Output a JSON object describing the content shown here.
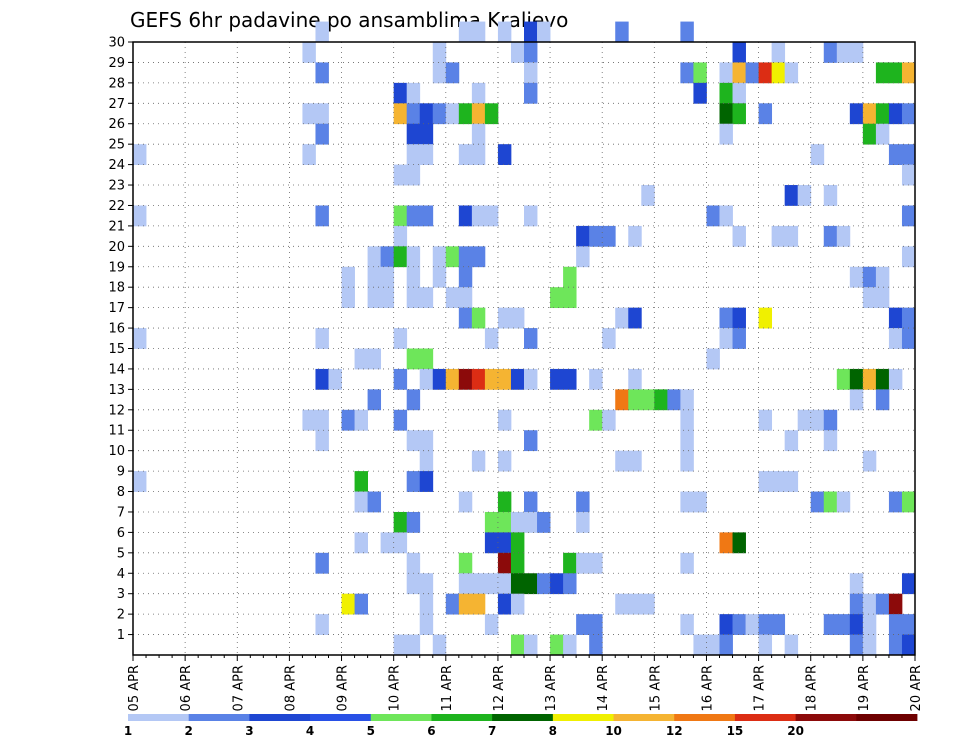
{
  "chart_data": {
    "type": "heatmap",
    "title": "GEFS 6hr padavine po ansamblima Kraljevo",
    "xlabel": "",
    "ylabel": "",
    "x_tick_labels": [
      "05 APR",
      "06 APR",
      "07 APR",
      "08 APR",
      "09 APR",
      "10 APR",
      "11 APR",
      "12 APR",
      "13 APR",
      "14 APR",
      "15 APR",
      "16 APR",
      "17 APR",
      "18 APR",
      "19 APR",
      "20 APR"
    ],
    "y_tick_labels": [
      "1",
      "2",
      "3",
      "4",
      "5",
      "6",
      "7",
      "8",
      "9",
      "10",
      "11",
      "12",
      "13",
      "14",
      "15",
      "16",
      "17",
      "18",
      "19",
      "20",
      "21",
      "22",
      "23",
      "24",
      "25",
      "26",
      "27",
      "28",
      "29",
      "30"
    ],
    "ylim": [
      0,
      30
    ],
    "x_steps_per_day": 4,
    "x_steps": 60,
    "grid": true,
    "colorbar": {
      "position": "bottom",
      "labels": [
        "1",
        "2",
        "3",
        "4",
        "5",
        "6",
        "7",
        "8",
        "10",
        "12",
        "15",
        "20"
      ],
      "colors": [
        "#b4c8f5",
        "#5a82e6",
        "#1e46d2",
        "#2850e6",
        "#6ee65a",
        "#1eb41e",
        "#006400",
        "#f0f000",
        "#f5b432",
        "#f07814",
        "#dc2d14",
        "#8c0a0a",
        "#6e0000"
      ]
    },
    "cells": [
      [
        14,
        30,
        0
      ],
      [
        25,
        30,
        0
      ],
      [
        26,
        30,
        0
      ],
      [
        28,
        30,
        0
      ],
      [
        30,
        30,
        2
      ],
      [
        31,
        30,
        0
      ],
      [
        37,
        30,
        1
      ],
      [
        42,
        30,
        1
      ],
      [
        13,
        29,
        0
      ],
      [
        23,
        29,
        0
      ],
      [
        29,
        29,
        0
      ],
      [
        30,
        29,
        1
      ],
      [
        46,
        29,
        2
      ],
      [
        49,
        29,
        0
      ],
      [
        53,
        29,
        1
      ],
      [
        54,
        29,
        0
      ],
      [
        55,
        29,
        0
      ],
      [
        14,
        28,
        1
      ],
      [
        23,
        28,
        0
      ],
      [
        24,
        28,
        1
      ],
      [
        30,
        28,
        0
      ],
      [
        42,
        28,
        1
      ],
      [
        43,
        28,
        4
      ],
      [
        45,
        28,
        0
      ],
      [
        46,
        28,
        8
      ],
      [
        47,
        28,
        1
      ],
      [
        48,
        28,
        10
      ],
      [
        49,
        28,
        7
      ],
      [
        50,
        28,
        0
      ],
      [
        57,
        28,
        5
      ],
      [
        58,
        28,
        5
      ],
      [
        59,
        28,
        8
      ],
      [
        20,
        27,
        2
      ],
      [
        21,
        27,
        0
      ],
      [
        26,
        27,
        0
      ],
      [
        30,
        27,
        1
      ],
      [
        43,
        27,
        2
      ],
      [
        45,
        27,
        5
      ],
      [
        46,
        27,
        0
      ],
      [
        13,
        26,
        0
      ],
      [
        14,
        26,
        0
      ],
      [
        20,
        26,
        8
      ],
      [
        21,
        26,
        1
      ],
      [
        22,
        26,
        2
      ],
      [
        23,
        26,
        1
      ],
      [
        24,
        26,
        0
      ],
      [
        25,
        26,
        5
      ],
      [
        26,
        26,
        8
      ],
      [
        27,
        26,
        5
      ],
      [
        45,
        26,
        6
      ],
      [
        46,
        26,
        5
      ],
      [
        48,
        26,
        1
      ],
      [
        55,
        26,
        2
      ],
      [
        56,
        26,
        8
      ],
      [
        57,
        26,
        5
      ],
      [
        58,
        26,
        2
      ],
      [
        59,
        26,
        1
      ],
      [
        14,
        25,
        1
      ],
      [
        21,
        25,
        2
      ],
      [
        22,
        25,
        2
      ],
      [
        26,
        25,
        0
      ],
      [
        45,
        25,
        0
      ],
      [
        56,
        25,
        5
      ],
      [
        57,
        25,
        0
      ],
      [
        0,
        24,
        0
      ],
      [
        13,
        24,
        0
      ],
      [
        21,
        24,
        0
      ],
      [
        22,
        24,
        0
      ],
      [
        25,
        24,
        0
      ],
      [
        26,
        24,
        0
      ],
      [
        28,
        24,
        2
      ],
      [
        52,
        24,
        0
      ],
      [
        58,
        24,
        1
      ],
      [
        59,
        24,
        1
      ],
      [
        20,
        23,
        0
      ],
      [
        21,
        23,
        0
      ],
      [
        59,
        23,
        0
      ],
      [
        39,
        22,
        0
      ],
      [
        50,
        22,
        2
      ],
      [
        51,
        22,
        0
      ],
      [
        53,
        22,
        0
      ],
      [
        0,
        21,
        0
      ],
      [
        14,
        21,
        1
      ],
      [
        20,
        21,
        4
      ],
      [
        21,
        21,
        1
      ],
      [
        22,
        21,
        1
      ],
      [
        25,
        21,
        2
      ],
      [
        26,
        21,
        0
      ],
      [
        27,
        21,
        0
      ],
      [
        30,
        21,
        0
      ],
      [
        44,
        21,
        1
      ],
      [
        45,
        21,
        0
      ],
      [
        59,
        21,
        1
      ],
      [
        20,
        20,
        0
      ],
      [
        34,
        20,
        2
      ],
      [
        35,
        20,
        1
      ],
      [
        36,
        20,
        1
      ],
      [
        38,
        20,
        0
      ],
      [
        46,
        20,
        0
      ],
      [
        49,
        20,
        0
      ],
      [
        50,
        20,
        0
      ],
      [
        53,
        20,
        1
      ],
      [
        54,
        20,
        0
      ],
      [
        18,
        19,
        0
      ],
      [
        19,
        19,
        1
      ],
      [
        20,
        19,
        5
      ],
      [
        21,
        19,
        0
      ],
      [
        23,
        19,
        0
      ],
      [
        24,
        19,
        4
      ],
      [
        25,
        19,
        1
      ],
      [
        26,
        19,
        1
      ],
      [
        34,
        19,
        0
      ],
      [
        59,
        19,
        0
      ],
      [
        16,
        18,
        0
      ],
      [
        18,
        18,
        0
      ],
      [
        19,
        18,
        0
      ],
      [
        21,
        18,
        0
      ],
      [
        23,
        18,
        0
      ],
      [
        25,
        18,
        1
      ],
      [
        33,
        18,
        4
      ],
      [
        55,
        18,
        0
      ],
      [
        56,
        18,
        1
      ],
      [
        57,
        18,
        0
      ],
      [
        16,
        17,
        0
      ],
      [
        18,
        17,
        0
      ],
      [
        19,
        17,
        0
      ],
      [
        21,
        17,
        0
      ],
      [
        22,
        17,
        0
      ],
      [
        24,
        17,
        0
      ],
      [
        25,
        17,
        0
      ],
      [
        32,
        17,
        4
      ],
      [
        33,
        17,
        4
      ],
      [
        56,
        17,
        0
      ],
      [
        57,
        17,
        0
      ],
      [
        25,
        16,
        1
      ],
      [
        26,
        16,
        4
      ],
      [
        28,
        16,
        0
      ],
      [
        29,
        16,
        0
      ],
      [
        37,
        16,
        0
      ],
      [
        38,
        16,
        2
      ],
      [
        45,
        16,
        1
      ],
      [
        46,
        16,
        2
      ],
      [
        48,
        16,
        7
      ],
      [
        58,
        16,
        2
      ],
      [
        59,
        16,
        1
      ],
      [
        0,
        15,
        0
      ],
      [
        14,
        15,
        0
      ],
      [
        20,
        15,
        0
      ],
      [
        27,
        15,
        0
      ],
      [
        30,
        15,
        1
      ],
      [
        36,
        15,
        0
      ],
      [
        45,
        15,
        0
      ],
      [
        46,
        15,
        1
      ],
      [
        58,
        15,
        0
      ],
      [
        59,
        15,
        1
      ],
      [
        17,
        14,
        0
      ],
      [
        18,
        14,
        0
      ],
      [
        21,
        14,
        4
      ],
      [
        22,
        14,
        4
      ],
      [
        44,
        14,
        0
      ],
      [
        14,
        13,
        2
      ],
      [
        15,
        13,
        0
      ],
      [
        20,
        13,
        1
      ],
      [
        22,
        13,
        0
      ],
      [
        23,
        13,
        2
      ],
      [
        24,
        13,
        8
      ],
      [
        25,
        13,
        11
      ],
      [
        26,
        13,
        10
      ],
      [
        27,
        13,
        8
      ],
      [
        28,
        13,
        8
      ],
      [
        29,
        13,
        2
      ],
      [
        30,
        13,
        0
      ],
      [
        32,
        13,
        2
      ],
      [
        33,
        13,
        2
      ],
      [
        35,
        13,
        0
      ],
      [
        38,
        13,
        0
      ],
      [
        54,
        13,
        4
      ],
      [
        55,
        13,
        6
      ],
      [
        56,
        13,
        8
      ],
      [
        57,
        13,
        6
      ],
      [
        58,
        13,
        0
      ],
      [
        18,
        12,
        1
      ],
      [
        21,
        12,
        1
      ],
      [
        37,
        12,
        9
      ],
      [
        38,
        12,
        4
      ],
      [
        39,
        12,
        4
      ],
      [
        40,
        12,
        5
      ],
      [
        41,
        12,
        1
      ],
      [
        42,
        12,
        0
      ],
      [
        55,
        12,
        0
      ],
      [
        57,
        12,
        1
      ],
      [
        13,
        11,
        0
      ],
      [
        14,
        11,
        0
      ],
      [
        16,
        11,
        1
      ],
      [
        17,
        11,
        0
      ],
      [
        20,
        11,
        1
      ],
      [
        28,
        11,
        0
      ],
      [
        35,
        11,
        4
      ],
      [
        36,
        11,
        0
      ],
      [
        42,
        11,
        0
      ],
      [
        48,
        11,
        0
      ],
      [
        51,
        11,
        0
      ],
      [
        52,
        11,
        0
      ],
      [
        53,
        11,
        1
      ],
      [
        14,
        10,
        0
      ],
      [
        21,
        10,
        0
      ],
      [
        22,
        10,
        0
      ],
      [
        30,
        10,
        1
      ],
      [
        42,
        10,
        0
      ],
      [
        50,
        10,
        0
      ],
      [
        53,
        10,
        0
      ],
      [
        22,
        9,
        0
      ],
      [
        26,
        9,
        0
      ],
      [
        28,
        9,
        0
      ],
      [
        37,
        9,
        0
      ],
      [
        38,
        9,
        0
      ],
      [
        42,
        9,
        0
      ],
      [
        56,
        9,
        0
      ],
      [
        0,
        8,
        0
      ],
      [
        17,
        8,
        5
      ],
      [
        21,
        8,
        1
      ],
      [
        22,
        8,
        2
      ],
      [
        48,
        8,
        0
      ],
      [
        49,
        8,
        0
      ],
      [
        50,
        8,
        0
      ],
      [
        17,
        7,
        0
      ],
      [
        18,
        7,
        1
      ],
      [
        25,
        7,
        0
      ],
      [
        28,
        7,
        5
      ],
      [
        30,
        7,
        1
      ],
      [
        34,
        7,
        1
      ],
      [
        42,
        7,
        0
      ],
      [
        43,
        7,
        0
      ],
      [
        52,
        7,
        1
      ],
      [
        53,
        7,
        4
      ],
      [
        54,
        7,
        0
      ],
      [
        58,
        7,
        1
      ],
      [
        59,
        7,
        4
      ],
      [
        20,
        6,
        5
      ],
      [
        21,
        6,
        1
      ],
      [
        27,
        6,
        4
      ],
      [
        28,
        6,
        4
      ],
      [
        29,
        6,
        0
      ],
      [
        30,
        6,
        0
      ],
      [
        31,
        6,
        1
      ],
      [
        34,
        6,
        0
      ],
      [
        17,
        5,
        0
      ],
      [
        19,
        5,
        0
      ],
      [
        20,
        5,
        0
      ],
      [
        27,
        5,
        2
      ],
      [
        28,
        5,
        2
      ],
      [
        29,
        5,
        5
      ],
      [
        45,
        5,
        9
      ],
      [
        46,
        5,
        6
      ],
      [
        14,
        4,
        1
      ],
      [
        21,
        4,
        0
      ],
      [
        25,
        4,
        4
      ],
      [
        28,
        4,
        11
      ],
      [
        29,
        4,
        5
      ],
      [
        33,
        4,
        5
      ],
      [
        34,
        4,
        0
      ],
      [
        35,
        4,
        0
      ],
      [
        42,
        4,
        0
      ],
      [
        21,
        3,
        0
      ],
      [
        22,
        3,
        0
      ],
      [
        25,
        3,
        0
      ],
      [
        26,
        3,
        0
      ],
      [
        27,
        3,
        0
      ],
      [
        28,
        3,
        0
      ],
      [
        29,
        3,
        6
      ],
      [
        30,
        3,
        6
      ],
      [
        31,
        3,
        1
      ],
      [
        32,
        3,
        2
      ],
      [
        33,
        3,
        1
      ],
      [
        55,
        3,
        0
      ],
      [
        59,
        3,
        2
      ],
      [
        16,
        2,
        7
      ],
      [
        17,
        2,
        1
      ],
      [
        22,
        2,
        0
      ],
      [
        24,
        2,
        1
      ],
      [
        25,
        2,
        8
      ],
      [
        26,
        2,
        8
      ],
      [
        28,
        2,
        2
      ],
      [
        29,
        2,
        0
      ],
      [
        37,
        2,
        0
      ],
      [
        38,
        2,
        0
      ],
      [
        39,
        2,
        0
      ],
      [
        55,
        2,
        1
      ],
      [
        56,
        2,
        0
      ],
      [
        57,
        2,
        1
      ],
      [
        58,
        2,
        11
      ],
      [
        14,
        1,
        0
      ],
      [
        22,
        1,
        0
      ],
      [
        27,
        1,
        0
      ],
      [
        34,
        1,
        1
      ],
      [
        35,
        1,
        1
      ],
      [
        42,
        1,
        0
      ],
      [
        45,
        1,
        2
      ],
      [
        46,
        1,
        1
      ],
      [
        47,
        1,
        0
      ],
      [
        48,
        1,
        1
      ],
      [
        49,
        1,
        1
      ],
      [
        53,
        1,
        1
      ],
      [
        54,
        1,
        1
      ],
      [
        55,
        1,
        2
      ],
      [
        56,
        1,
        0
      ],
      [
        58,
        1,
        1
      ],
      [
        59,
        1,
        1
      ],
      [
        20,
        0,
        0
      ],
      [
        21,
        0,
        0
      ],
      [
        23,
        0,
        0
      ],
      [
        29,
        0,
        4
      ],
      [
        30,
        0,
        0
      ],
      [
        32,
        0,
        4
      ],
      [
        33,
        0,
        0
      ],
      [
        35,
        0,
        1
      ],
      [
        43,
        0,
        0
      ],
      [
        44,
        0,
        0
      ],
      [
        45,
        0,
        1
      ],
      [
        48,
        0,
        0
      ],
      [
        50,
        0,
        0
      ],
      [
        55,
        0,
        1
      ],
      [
        56,
        0,
        0
      ],
      [
        58,
        0,
        1
      ],
      [
        59,
        0,
        2
      ]
    ]
  }
}
